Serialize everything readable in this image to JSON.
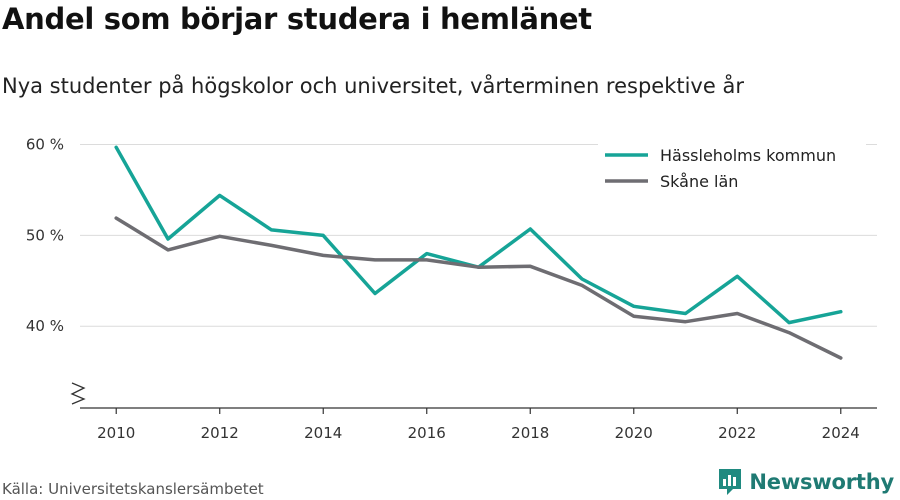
{
  "chart_data": {
    "type": "line",
    "title": "Andel som börjar studera i hemlänet",
    "subtitle": "Nya studenter på högskolor och universitet, vårterminen respektive år",
    "x": [
      2010,
      2011,
      2012,
      2013,
      2014,
      2015,
      2016,
      2017,
      2018,
      2019,
      2020,
      2021,
      2022,
      2023,
      2024
    ],
    "series": [
      {
        "name": "Hässleholms kommun",
        "color": "#16a497",
        "values": [
          59.7,
          49.6,
          54.4,
          50.6,
          50.0,
          43.6,
          48.0,
          46.5,
          50.7,
          45.2,
          42.2,
          41.4,
          45.5,
          40.4,
          41.6
        ]
      },
      {
        "name": "Skåne län",
        "color": "#6e6d72",
        "values": [
          51.9,
          48.4,
          49.9,
          48.9,
          47.8,
          47.3,
          47.3,
          46.5,
          46.6,
          44.5,
          41.1,
          40.5,
          41.4,
          39.3,
          36.5
        ]
      }
    ],
    "xticks": [
      2010,
      2012,
      2014,
      2016,
      2018,
      2020,
      2022,
      2024
    ],
    "yticks": [
      {
        "value": 40,
        "label": "40 %"
      },
      {
        "value": 50,
        "label": "50 %"
      },
      {
        "value": 60,
        "label": "60 %"
      }
    ],
    "xlim": [
      2009.3,
      2024.7
    ],
    "ylim": [
      31,
      60.5
    ],
    "grid": true,
    "y_axis_break": true,
    "legend_position": "top-right"
  },
  "footer": {
    "source": "Källa: Universitetskanslersämbetet",
    "brand": "Newsworthy",
    "brand_icon": "bar-chart-logo-icon"
  }
}
